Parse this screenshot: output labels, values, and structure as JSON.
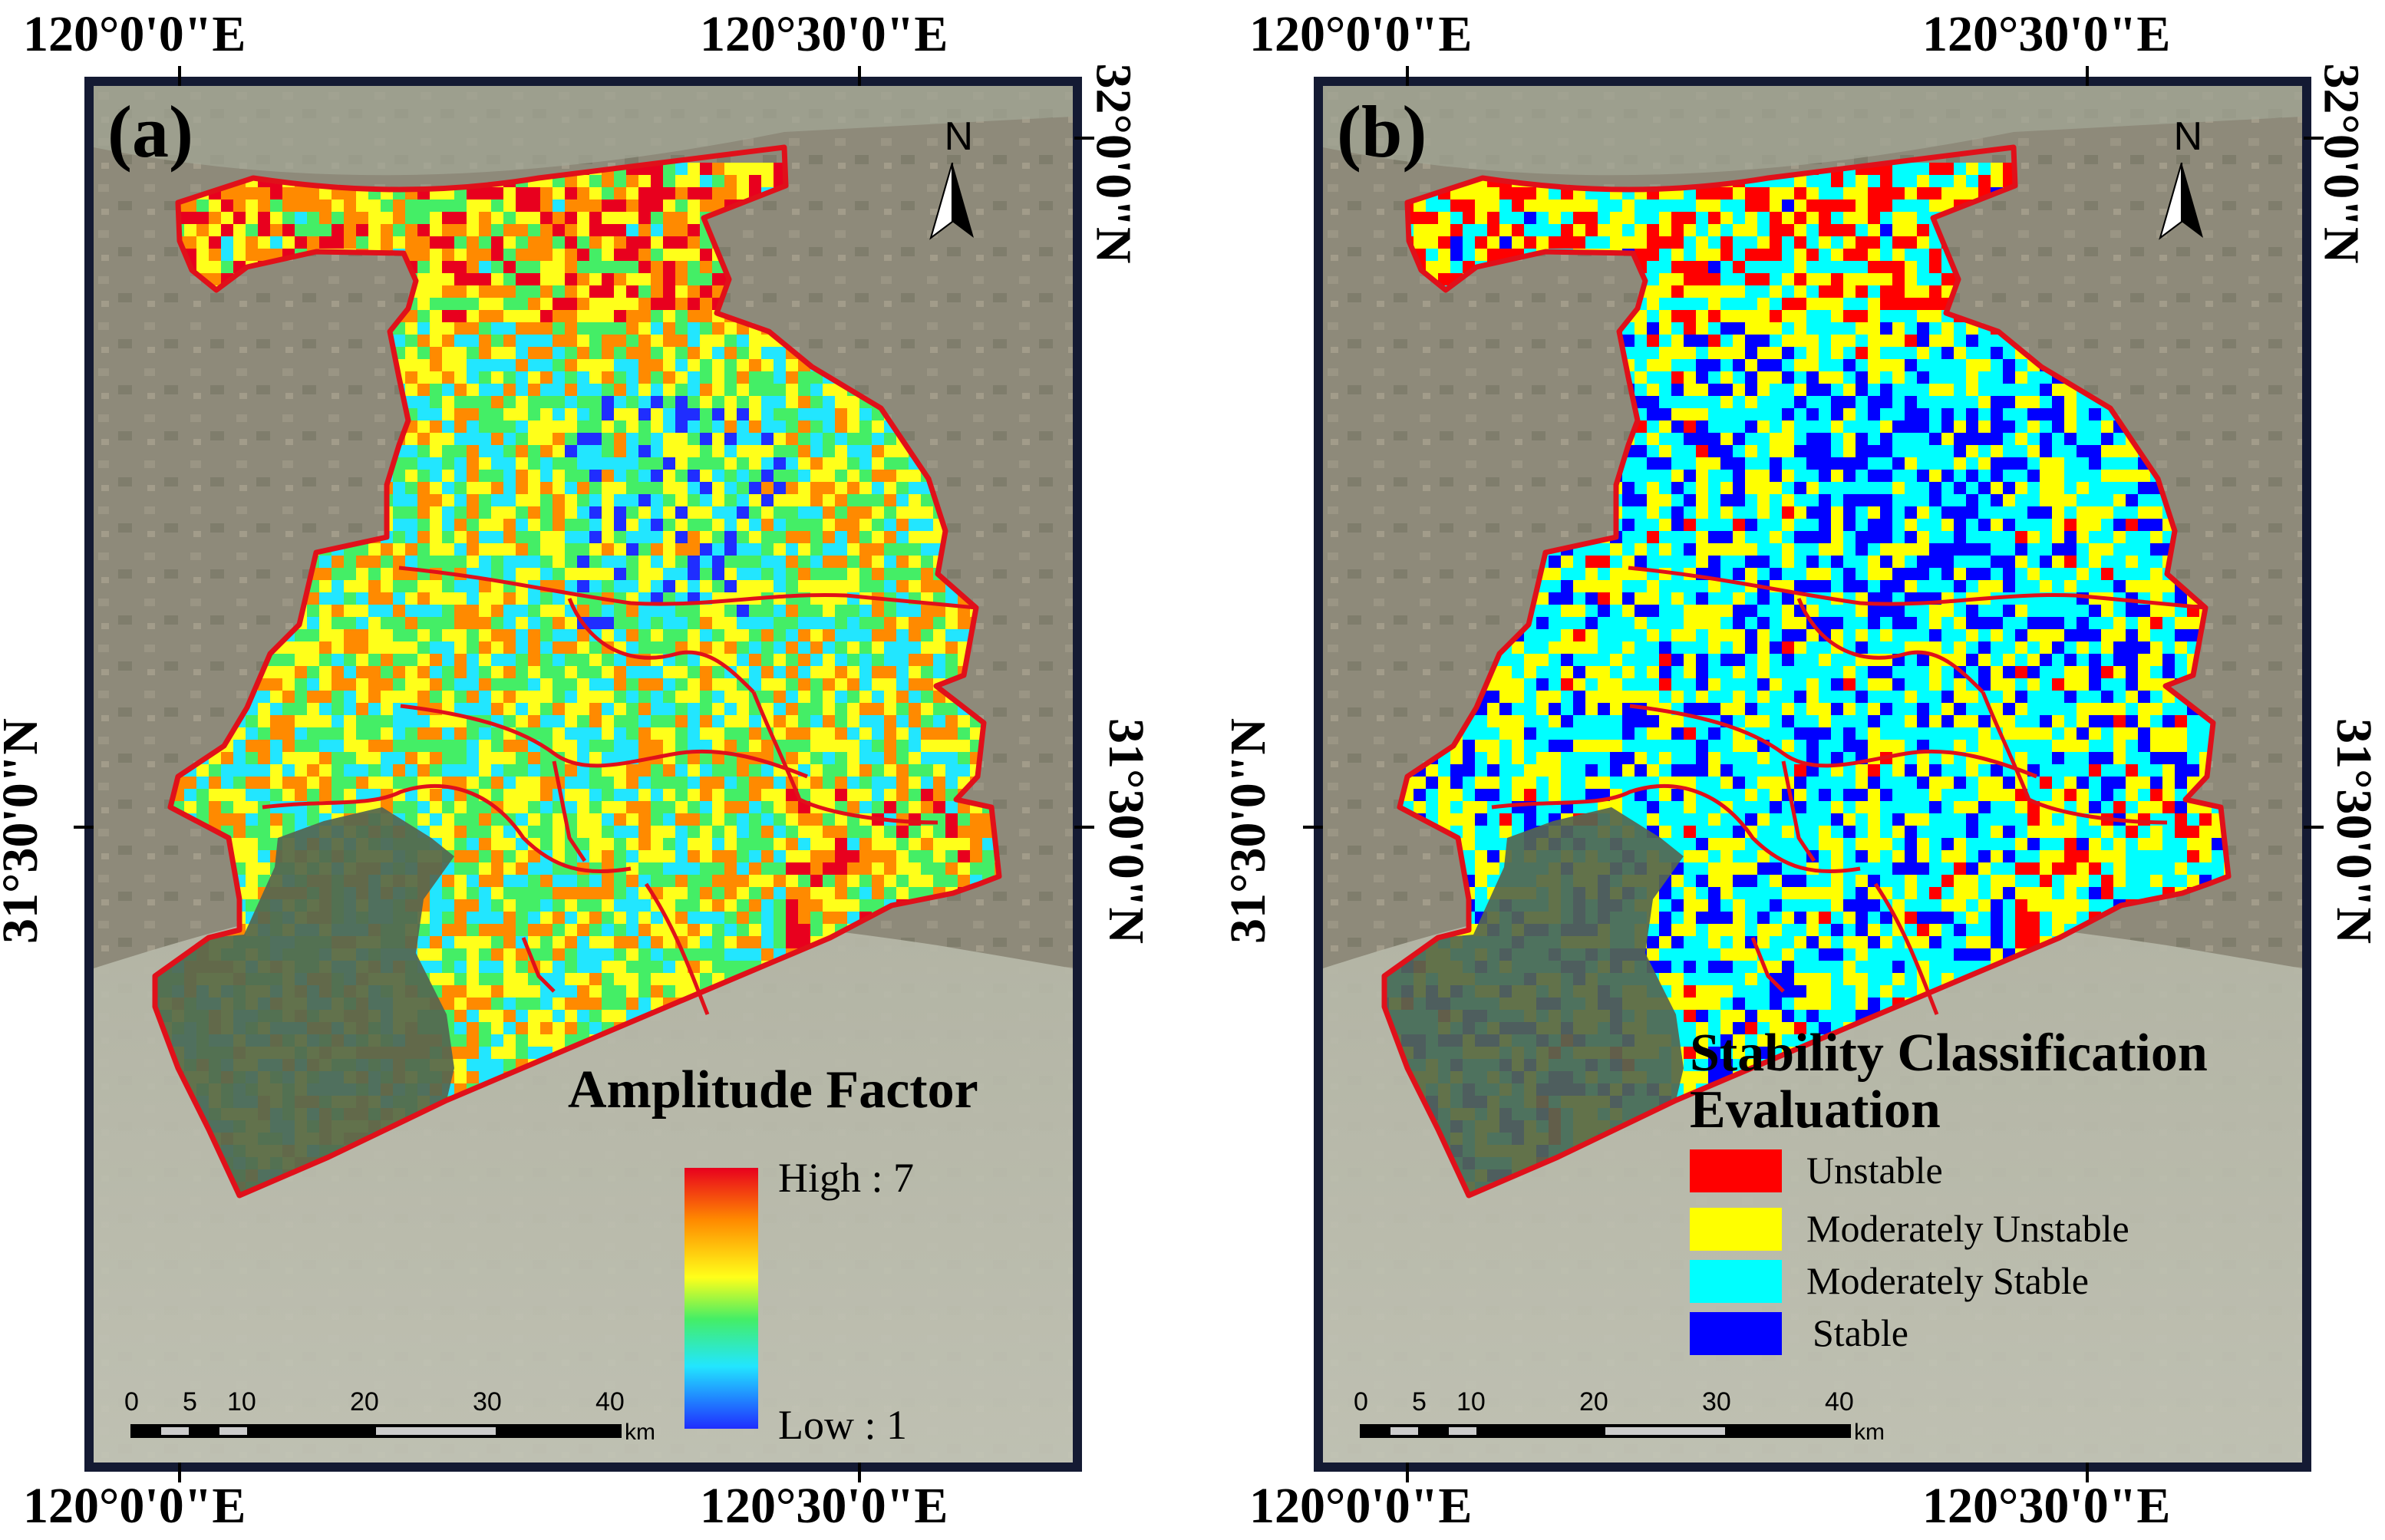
{
  "coords": {
    "lon_left": "120°0'0\"E",
    "lon_right": "120°30'0\"E",
    "lat_top": "32°0'0\"N",
    "lat_bottom": "31°30'0\"N"
  },
  "panels": [
    {
      "label": "(a)",
      "north_label": "N",
      "legend": {
        "title": "Amplitude Factor",
        "high_label": "High : 7",
        "low_label": "Low : 1",
        "ramp_colors": [
          "#e8001e",
          "#ff8a00",
          "#ffff1a",
          "#44ee66",
          "#22e6ff",
          "#1f2dff"
        ]
      },
      "scale_bar": {
        "ticks": [
          "0",
          "5",
          "10",
          "20",
          "30",
          "40"
        ],
        "unit": "km"
      }
    },
    {
      "label": "(b)",
      "north_label": "N",
      "legend": {
        "title_line1": "Stability Classification",
        "title_line2": "Evaluation",
        "classes": [
          {
            "label": "Unstable",
            "color": "#ff0000"
          },
          {
            "label": "Moderately Unstable",
            "color": "#ffff00"
          },
          {
            "label": "Moderately Stable",
            "color": "#00ffff"
          },
          {
            "label": "Stable",
            "color": "#0000ff"
          }
        ]
      },
      "scale_bar": {
        "ticks": [
          "0",
          "5",
          "10",
          "20",
          "30",
          "40"
        ],
        "unit": "km"
      }
    }
  ]
}
